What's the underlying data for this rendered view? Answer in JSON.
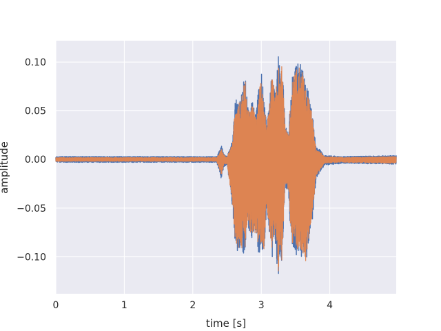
{
  "chart_data": {
    "type": "line",
    "title": "",
    "xlabel": "time [s]",
    "ylabel": "amplitude",
    "xlim": [
      0,
      4.97
    ],
    "ylim": [
      -0.138,
      0.122
    ],
    "x_ticks": [
      0,
      1,
      2,
      3,
      4
    ],
    "x_tick_labels": [
      "0",
      "1",
      "2",
      "3",
      "4"
    ],
    "y_ticks": [
      0.1,
      0.05,
      0.0,
      -0.05,
      -0.1
    ],
    "y_tick_labels": [
      "0.10",
      "0.05",
      "0.00",
      "−0.05",
      "−0.10"
    ],
    "grid": true,
    "legend": "none",
    "style": {
      "plot_background": "#eaeaf2",
      "grid_color": "#ffffff",
      "text_color": "#262626"
    },
    "series": [
      {
        "color": "#4c72b0",
        "envelope": {
          "t": [
            0.0,
            2.35,
            2.42,
            2.45,
            2.5,
            2.58,
            2.62,
            2.66,
            2.7,
            2.76,
            2.8,
            2.84,
            2.88,
            2.92,
            2.96,
            3.0,
            3.04,
            3.08,
            3.12,
            3.16,
            3.2,
            3.22,
            3.25,
            3.28,
            3.3,
            3.35,
            3.4,
            3.42,
            3.46,
            3.5,
            3.55,
            3.6,
            3.65,
            3.7,
            3.75,
            3.8,
            3.85,
            3.92,
            4.2,
            4.97
          ],
          "max": [
            0.003,
            0.003,
            0.014,
            0.006,
            0.003,
            0.02,
            0.062,
            0.062,
            0.063,
            0.092,
            0.056,
            0.06,
            0.059,
            0.045,
            0.074,
            0.093,
            0.063,
            0.035,
            0.066,
            0.1,
            0.068,
            0.082,
            0.112,
            0.083,
            0.108,
            0.035,
            0.028,
            0.055,
            0.092,
            0.094,
            0.108,
            0.094,
            0.076,
            0.069,
            0.044,
            0.012,
            0.011,
            0.004,
            0.003,
            0.004
          ],
          "min": [
            -0.003,
            -0.003,
            -0.021,
            -0.008,
            -0.005,
            -0.05,
            -0.09,
            -0.097,
            -0.096,
            -0.1,
            -0.065,
            -0.08,
            -0.085,
            -0.078,
            -0.1,
            -0.092,
            -0.098,
            -0.052,
            -0.078,
            -0.102,
            -0.08,
            -0.1,
            -0.125,
            -0.094,
            -0.11,
            -0.028,
            -0.035,
            -0.07,
            -0.092,
            -0.1,
            -0.1,
            -0.1,
            -0.11,
            -0.09,
            -0.06,
            -0.02,
            -0.015,
            -0.006,
            -0.004,
            -0.005
          ]
        }
      },
      {
        "color": "#dd8452",
        "envelope": {
          "t": [
            0.0,
            2.35,
            2.42,
            2.45,
            2.5,
            2.58,
            2.62,
            2.66,
            2.7,
            2.76,
            2.8,
            2.84,
            2.88,
            2.92,
            2.96,
            3.0,
            3.04,
            3.08,
            3.12,
            3.16,
            3.2,
            3.22,
            3.25,
            3.28,
            3.3,
            3.35,
            3.4,
            3.42,
            3.46,
            3.5,
            3.55,
            3.6,
            3.65,
            3.7,
            3.75,
            3.8,
            3.85,
            3.92,
            4.2,
            4.97
          ],
          "max": [
            0.002,
            0.002,
            0.012,
            0.005,
            0.002,
            0.017,
            0.058,
            0.058,
            0.06,
            0.087,
            0.052,
            0.056,
            0.055,
            0.042,
            0.07,
            0.088,
            0.059,
            0.032,
            0.062,
            0.096,
            0.064,
            0.078,
            0.102,
            0.079,
            0.1,
            0.032,
            0.025,
            0.051,
            0.087,
            0.09,
            0.1,
            0.09,
            0.072,
            0.065,
            0.041,
            0.01,
            0.009,
            0.003,
            0.002,
            0.003
          ],
          "min": [
            -0.002,
            -0.002,
            -0.018,
            -0.006,
            -0.004,
            -0.046,
            -0.085,
            -0.092,
            -0.091,
            -0.095,
            -0.061,
            -0.076,
            -0.081,
            -0.074,
            -0.095,
            -0.088,
            -0.094,
            -0.049,
            -0.074,
            -0.097,
            -0.076,
            -0.095,
            -0.118,
            -0.09,
            -0.105,
            -0.025,
            -0.032,
            -0.066,
            -0.088,
            -0.095,
            -0.095,
            -0.095,
            -0.105,
            -0.086,
            -0.056,
            -0.017,
            -0.012,
            -0.004,
            -0.003,
            -0.004
          ]
        }
      }
    ]
  }
}
